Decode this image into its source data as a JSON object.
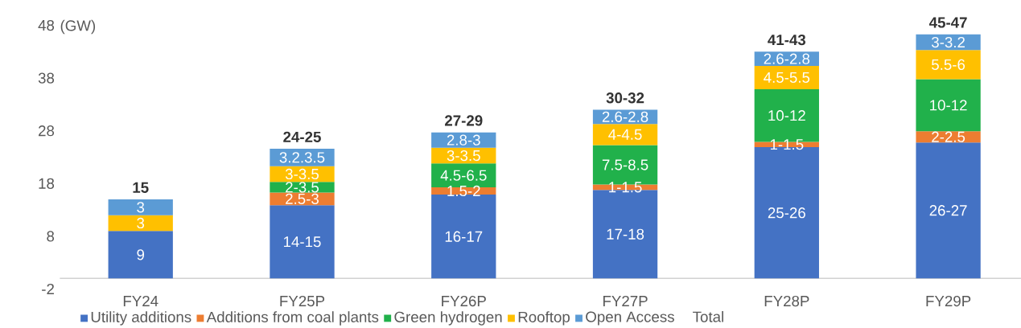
{
  "chart_data": {
    "type": "bar",
    "stacked": true,
    "ylabel": "(GW)",
    "categories": [
      "FY24",
      "FY25P",
      "FY26P",
      "FY27P",
      "FY28P",
      "FY29P"
    ],
    "series": [
      {
        "name": "Utility additions",
        "color": "#4472c4",
        "values": [
          9,
          13.9,
          15.9,
          16.8,
          24.9,
          25.8
        ],
        "value_labels": [
          "9",
          "14-15",
          "16-17",
          "17-18",
          "25-26",
          "26-27"
        ]
      },
      {
        "name": "Additions from coal plants",
        "color": "#ed7d31",
        "values": [
          null,
          2.4,
          1.4,
          1.0,
          1.0,
          2.1
        ],
        "value_labels": [
          null,
          "2.5-3",
          "1.5-2",
          "1-1.5",
          "1-1.5",
          "2-2.5"
        ]
      },
      {
        "name": "Green hydrogen",
        "color": "#21b14b",
        "values": [
          null,
          2.0,
          4.5,
          7.5,
          10,
          9.9
        ],
        "value_labels": [
          null,
          "2-3.5",
          "4.5-6.5",
          "7.5-8.5",
          "10-12",
          "10-12"
        ]
      },
      {
        "name": "Rooftop",
        "color": "#ffc000",
        "values": [
          3,
          3.0,
          3.0,
          4.0,
          4.4,
          5.5
        ],
        "value_labels": [
          "3",
          "3-3.5",
          "3-3.5",
          "4-4.5",
          "4.5-5.5",
          "5.5-6"
        ]
      },
      {
        "name": "Open Access",
        "color": "#5b9bd5",
        "values": [
          3,
          3.3,
          2.9,
          2.7,
          2.7,
          3.0
        ],
        "value_labels": [
          "3",
          "3.2.3.5",
          "2.8-3",
          "2.6-2.8",
          "2.6-2.8",
          "3-3.2"
        ]
      }
    ],
    "totals": [
      "15",
      "24-25",
      "27-29",
      "30-32",
      "41-43",
      "45-47"
    ],
    "annotations": [
      "Total"
    ],
    "ylim": [
      -2,
      48
    ],
    "yticks": [
      -2,
      8,
      18,
      28,
      38,
      48
    ],
    "legend": "bottom"
  }
}
